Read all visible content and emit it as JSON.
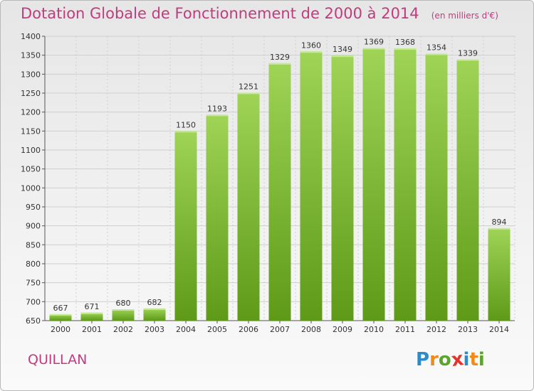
{
  "title": "Dotation Globale de Fonctionnement de 2000 à 2014",
  "unit": "(en milliers d'€)",
  "commune": "QUILLAN",
  "logo": {
    "text": "Proxiti",
    "letters": [
      "P",
      "r",
      "o",
      "x",
      "i",
      "t",
      "i"
    ],
    "colors": [
      "#2e8bc9",
      "#f08a1c",
      "#5aa52a",
      "#e2342b",
      "#2e8bc9",
      "#f08a1c",
      "#5aa52a"
    ]
  },
  "colors": {
    "bar_top": "#9fd457",
    "bar_bottom": "#5e9a18",
    "title": "#c13b7e",
    "grid": "#cfcfcf"
  },
  "chart_data": {
    "type": "bar",
    "categories": [
      "2000",
      "2001",
      "2002",
      "2003",
      "2004",
      "2005",
      "2006",
      "2007",
      "2008",
      "2009",
      "2010",
      "2011",
      "2012",
      "2013",
      "2014"
    ],
    "values": [
      667,
      671,
      680,
      682,
      1150,
      1193,
      1251,
      1329,
      1360,
      1349,
      1369,
      1368,
      1354,
      1339,
      894
    ],
    "ylim": [
      650,
      1400
    ],
    "yticks": [
      650,
      700,
      750,
      800,
      850,
      900,
      950,
      1000,
      1050,
      1100,
      1150,
      1200,
      1250,
      1300,
      1350,
      1400
    ],
    "grid": true,
    "legend": "none"
  }
}
